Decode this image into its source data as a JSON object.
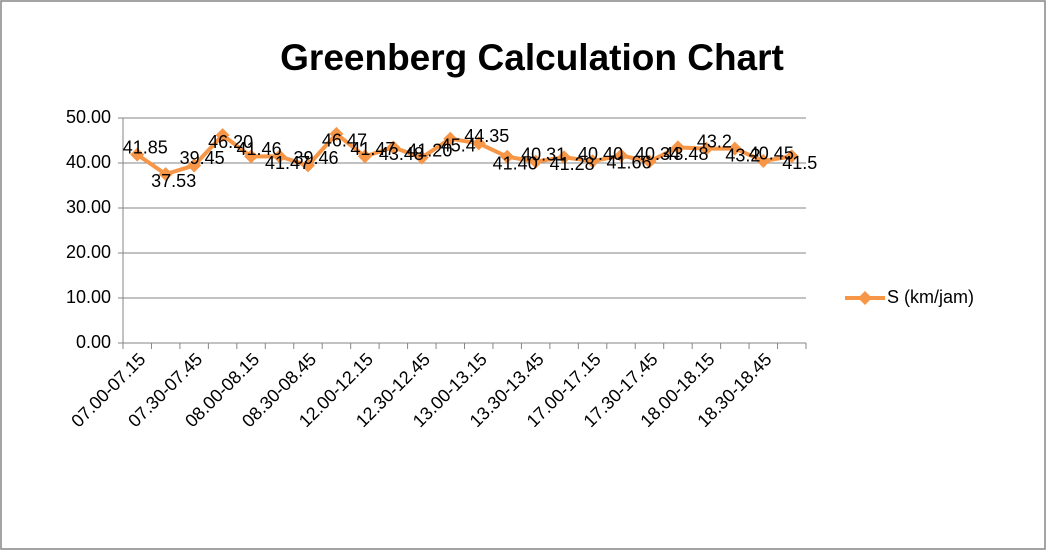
{
  "chart_data": {
    "type": "line",
    "title": "Greenberg Calculation Chart",
    "categories": [
      "07.00-07.15",
      null,
      "07.30-07.45",
      null,
      "08.00-08.15",
      null,
      "08.30-08.45",
      null,
      "12.00-12.15",
      null,
      "12.30-12.45",
      null,
      "13.00-13.15",
      null,
      "13.30-13.45",
      null,
      "17.00-17.15",
      null,
      "17.30-17.45",
      null,
      "18.00-18.15",
      null,
      "18.30-18.45",
      null
    ],
    "series": [
      {
        "name": "S (km/jam)",
        "color": "#f79646",
        "values": [
          41.85,
          37.53,
          39.45,
          46.2,
          41.46,
          41.47,
          39.46,
          46.47,
          41.47,
          43.48,
          41.2,
          45.4,
          44.35,
          41.4,
          40.31,
          41.28,
          40.4,
          41.66,
          40.34,
          43.48,
          43.2,
          43.2,
          40.45,
          41.5
        ],
        "value_labels": [
          "41.85",
          "37.53",
          "39.45",
          "46.20",
          "41.46",
          "41.47",
          "39.46",
          "46.47",
          "41.47",
          "43.48",
          "41.20",
          "45.4",
          "44.35",
          "41.40",
          "40.31",
          "41.28",
          "40.40",
          "41.66",
          "40.34",
          "43.48",
          "43.2",
          "43.2",
          "40.45",
          "41.5"
        ]
      }
    ],
    "ylim": [
      0,
      50
    ],
    "yticks": [
      {
        "value": 0,
        "label": "0.00"
      },
      {
        "value": 10,
        "label": "10.00"
      },
      {
        "value": 20,
        "label": "20.00"
      },
      {
        "value": 30,
        "label": "30.00"
      },
      {
        "value": 40,
        "label": "40.00"
      },
      {
        "value": 50,
        "label": "50.00"
      }
    ],
    "grid": true,
    "legend": "right"
  }
}
